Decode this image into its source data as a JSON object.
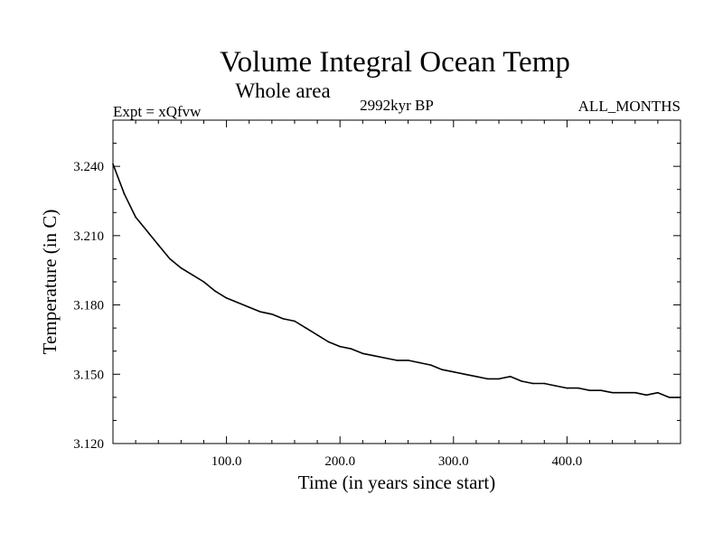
{
  "chart_data": {
    "type": "line",
    "title": "Volume Integral Ocean Temp",
    "subtitle": "Whole area",
    "left_label": "Expt = xQfvw",
    "center_label": "2992kyr BP",
    "right_label": "ALL_MONTHS",
    "xlabel": "Time (in years since start)",
    "ylabel": "Temperature (in C)",
    "xlim": [
      0,
      500
    ],
    "ylim": [
      3.12,
      3.26
    ],
    "xticks": [
      100,
      200,
      300,
      400
    ],
    "xtick_labels": [
      "100.0",
      "200.0",
      "300.0",
      "400.0"
    ],
    "yticks": [
      3.12,
      3.15,
      3.18,
      3.21,
      3.24
    ],
    "ytick_labels": [
      "3.120",
      "3.150",
      "3.180",
      "3.210",
      "3.240"
    ],
    "grid": false,
    "series": [
      {
        "name": "Volume Integral Ocean Temp",
        "x": [
          0,
          10,
          20,
          30,
          40,
          50,
          60,
          70,
          80,
          90,
          100,
          110,
          120,
          130,
          140,
          150,
          160,
          170,
          180,
          190,
          200,
          210,
          220,
          230,
          240,
          250,
          260,
          270,
          280,
          290,
          300,
          310,
          320,
          330,
          340,
          350,
          360,
          370,
          380,
          390,
          400,
          410,
          420,
          430,
          440,
          450,
          460,
          470,
          480,
          490,
          500
        ],
        "values": [
          3.241,
          3.228,
          3.218,
          3.212,
          3.206,
          3.2,
          3.196,
          3.193,
          3.19,
          3.186,
          3.183,
          3.181,
          3.179,
          3.177,
          3.176,
          3.174,
          3.173,
          3.17,
          3.167,
          3.164,
          3.162,
          3.161,
          3.159,
          3.158,
          3.157,
          3.156,
          3.156,
          3.155,
          3.154,
          3.152,
          3.151,
          3.15,
          3.149,
          3.148,
          3.148,
          3.149,
          3.147,
          3.146,
          3.146,
          3.145,
          3.144,
          3.144,
          3.143,
          3.143,
          3.142,
          3.142,
          3.142,
          3.141,
          3.142,
          3.14,
          3.14
        ]
      }
    ]
  }
}
